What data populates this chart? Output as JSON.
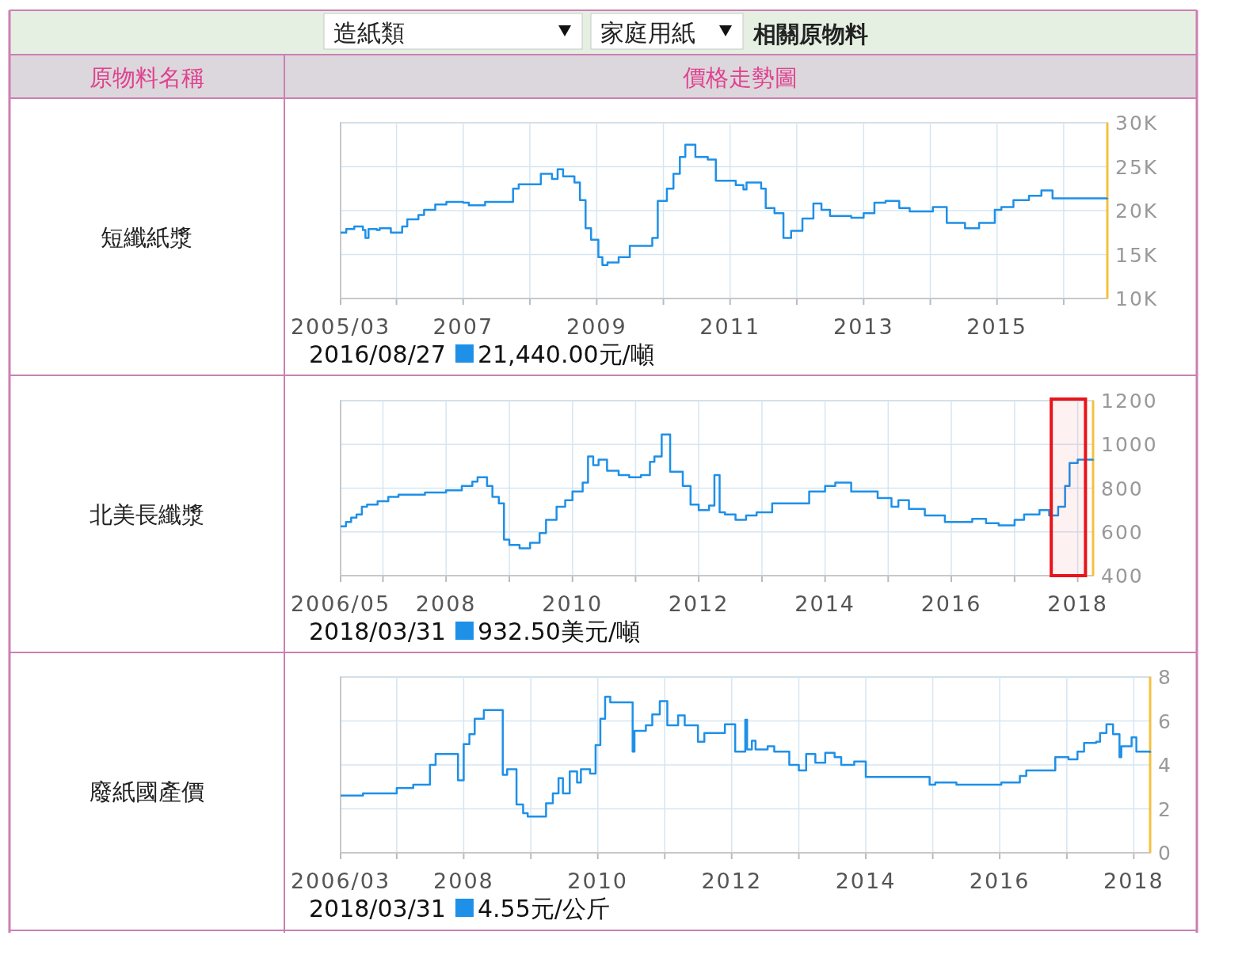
{
  "chart_data": [
    {
      "type": "other",
      "title": "相關原物料",
      "annotations": [
        "造紙類",
        "家庭用紙",
        "原物料名稱",
        "價格走勢圖"
      ]
    },
    {
      "type": "step",
      "title": "短纖紙漿",
      "color": "#1e90e8",
      "grid": true,
      "x": [
        "2005-03",
        "2005-04",
        "2005-05-15",
        "2005-07",
        "2005-07-15",
        "2005-08",
        "2005-09-15",
        "2005-10",
        "2005-12",
        "2006-02",
        "2006-03",
        "2006-05",
        "2006-06",
        "2006-08",
        "2006-10",
        "2007-01",
        "2007-02",
        "2007-05",
        "2007-10",
        "2007-11",
        "2008-03",
        "2008-05",
        "2008-06",
        "2008-07",
        "2008-09",
        "2008-10",
        "2008-11",
        "2008-12",
        "2009-01-10",
        "2009-02",
        "2009-03",
        "2009-05",
        "2009-07",
        "2009-11",
        "2009-12",
        "2010-01-20",
        "2010-02-25",
        "2010-04",
        "2010-05",
        "2010-06-25",
        "2010-09",
        "2010-10-15",
        "2011-02",
        "2011-03-15",
        "2011-04",
        "2011-06-20",
        "2011-07-15",
        "2011-09",
        "2011-10-20",
        "2011-12",
        "2012-02",
        "2012-04",
        "2012-05-15",
        "2012-07",
        "2012-10-25",
        "2013-01",
        "2013-03",
        "2013-05",
        "2013-07-15",
        "2013-09-10",
        "2014-01-15",
        "2014-04",
        "2014-07-10",
        "2014-09-25",
        "2014-12-20",
        "2015-01-25",
        "2015-04",
        "2015-06-25",
        "2015-09",
        "2015-11",
        "2016-08-27"
      ],
      "values": [
        17500,
        17900,
        18200,
        17800,
        16900,
        17900,
        17800,
        18000,
        17500,
        18200,
        19000,
        19500,
        20100,
        20700,
        21000,
        20900,
        20600,
        21000,
        22500,
        23000,
        24200,
        23600,
        24700,
        23900,
        23200,
        21200,
        18000,
        16700,
        14700,
        13800,
        14100,
        14700,
        16000,
        16900,
        21100,
        22500,
        24200,
        26100,
        27500,
        26100,
        25800,
        23400,
        22900,
        22400,
        23200,
        22500,
        20300,
        19700,
        16900,
        17700,
        19100,
        20800,
        20100,
        19400,
        19200,
        19700,
        20900,
        21100,
        20300,
        19900,
        20400,
        18600,
        18000,
        18600,
        20100,
        20400,
        21200,
        21700,
        22300,
        21400,
        21440
      ],
      "xlim": [
        "2005-03",
        "2016-08-27"
      ],
      "xticks": [
        {
          "value": "2005-03",
          "label": "2005/03"
        },
        {
          "value": "2006",
          "label": null
        },
        {
          "value": "2007",
          "label": "2007"
        },
        {
          "value": "2008",
          "label": null
        },
        {
          "value": "2009",
          "label": "2009"
        },
        {
          "value": "2010",
          "label": null
        },
        {
          "value": "2011",
          "label": "2011"
        },
        {
          "value": "2012",
          "label": null
        },
        {
          "value": "2013",
          "label": "2013"
        },
        {
          "value": "2014",
          "label": null
        },
        {
          "value": "2015",
          "label": "2015"
        },
        {
          "value": "2016",
          "label": null
        }
      ],
      "ylim": [
        10000,
        30000
      ],
      "yticks": [
        {
          "value": 10000,
          "label": "10K"
        },
        {
          "value": 15000,
          "label": "15K"
        },
        {
          "value": 20000,
          "label": "20K"
        },
        {
          "value": 25000,
          "label": "25K"
        },
        {
          "value": 30000,
          "label": "30K"
        }
      ],
      "annotations": [
        "2016/08/27",
        "21,440.00元/噸"
      ]
    },
    {
      "type": "step",
      "title": "北美長纖漿",
      "color": "#1e90e8",
      "grid": true,
      "x": [
        "2006-05",
        "2006-06",
        "2006-07",
        "2006-08",
        "2006-09",
        "2006-10",
        "2006-12",
        "2007-02",
        "2007-04",
        "2007-09",
        "2008-01",
        "2008-04",
        "2008-06",
        "2008-07",
        "2008-08-25",
        "2008-09-25",
        "2008-11",
        "2008-12",
        "2009-01",
        "2009-03",
        "2009-05",
        "2009-06-25",
        "2009-08",
        "2009-10",
        "2009-11-20",
        "2010-01",
        "2010-03",
        "2010-04",
        "2010-05",
        "2010-06",
        "2010-07-20",
        "2010-09-25",
        "2010-11-25",
        "2011-02",
        "2011-03-25",
        "2011-04-20",
        "2011-06",
        "2011-07-20",
        "2011-10",
        "2011-11-15",
        "2012-01",
        "2012-03",
        "2012-04",
        "2012-05",
        "2012-06",
        "2012-08",
        "2012-10",
        "2012-12",
        "2013-03",
        "2013-10",
        "2014-01",
        "2014-03",
        "2014-06",
        "2014-11",
        "2015-01-20",
        "2015-03",
        "2015-05",
        "2015-08",
        "2015-11-25",
        "2016-05",
        "2016-07-20",
        "2016-10",
        "2017-01",
        "2017-02-25",
        "2017-05-25",
        "2017-07-20",
        "2017-09-10",
        "2017-10-20",
        "2017-11-15",
        "2018-01",
        "2018-03-31"
      ],
      "values": [
        625,
        645,
        665,
        680,
        715,
        725,
        740,
        760,
        770,
        780,
        790,
        810,
        830,
        850,
        810,
        760,
        730,
        565,
        540,
        525,
        550,
        595,
        655,
        715,
        745,
        785,
        825,
        945,
        905,
        930,
        880,
        860,
        850,
        860,
        920,
        945,
        1045,
        875,
        810,
        725,
        700,
        720,
        860,
        690,
        680,
        655,
        675,
        690,
        730,
        785,
        810,
        825,
        785,
        755,
        715,
        745,
        705,
        675,
        645,
        660,
        640,
        630,
        655,
        680,
        700,
        675,
        715,
        810,
        915,
        930,
        932.5
      ],
      "xlim": [
        "2006-05",
        "2018-03-31"
      ],
      "xticks": [
        {
          "value": "2006-05",
          "label": "2006/05"
        },
        {
          "value": "2007",
          "label": null
        },
        {
          "value": "2008",
          "label": "2008"
        },
        {
          "value": "2009",
          "label": null
        },
        {
          "value": "2010",
          "label": "2010"
        },
        {
          "value": "2011",
          "label": null
        },
        {
          "value": "2012",
          "label": "2012"
        },
        {
          "value": "2013",
          "label": null
        },
        {
          "value": "2014",
          "label": "2014"
        },
        {
          "value": "2015",
          "label": null
        },
        {
          "value": "2016",
          "label": "2016"
        },
        {
          "value": "2017",
          "label": null
        },
        {
          "value": "2018",
          "label": "2018"
        }
      ],
      "ylim": [
        400,
        1200
      ],
      "yticks": [
        400,
        600,
        800,
        1000,
        1200
      ],
      "bands": [
        {
          "axis": "x",
          "from": "2017-08",
          "to": "2018-02-15",
          "color": "#e8141b"
        }
      ],
      "annotations": [
        "2018/03/31",
        "932.50美元/噸"
      ]
    },
    {
      "type": "step",
      "title": "廢紙國產價",
      "color": "#1e90e8",
      "grid": true,
      "x": [
        "2006-03",
        "2006-07",
        "2007-01",
        "2007-04",
        "2007-07",
        "2007-08",
        "2007-12",
        "2008-01",
        "2008-02",
        "2008-03",
        "2008-04-20",
        "2008-08",
        "2008-08-25",
        "2008-10-15",
        "2008-11-20",
        "2008-12-15",
        "2009-03-25",
        "2009-05",
        "2009-06",
        "2009-06-25",
        "2009-08",
        "2009-09-10",
        "2009-10",
        "2009-11-20",
        "2009-12-20",
        "2010-01-15",
        "2010-02-10",
        "2010-03-10",
        "2010-07-10",
        "2010-07-20",
        "2010-09-20",
        "2010-10-25",
        "2010-12-05",
        "2011-01-15",
        "2011-03-15",
        "2011-04-20",
        "2011-07",
        "2011-08-05",
        "2011-11-25",
        "2012-01-20",
        "2012-03-15",
        "2012-03-25",
        "2012-04-20",
        "2012-05-10",
        "2012-07-15",
        "2012-08-20",
        "2012-11-10",
        "2013-01",
        "2013-02-10",
        "2013-04",
        "2013-05-25",
        "2013-07-15",
        "2013-08-20",
        "2013-10-30",
        "2014-01",
        "2014-12-15",
        "2015-01-15",
        "2015-05-10",
        "2016-01-10",
        "2016-04-20",
        "2016-05-25",
        "2016-10-30",
        "2017-01-10",
        "2017-02-28",
        "2017-04-05",
        "2017-06-10",
        "2017-07",
        "2017-08-05",
        "2017-09-10",
        "2017-10-15",
        "2017-10-25",
        "2017-12-20",
        "2018-01-15",
        "2018-03-31"
      ],
      "values": [
        2.6,
        2.7,
        2.95,
        3.1,
        4.0,
        4.5,
        3.3,
        4.95,
        5.4,
        6.1,
        6.5,
        3.55,
        3.8,
        2.2,
        1.8,
        1.65,
        2.25,
        2.7,
        3.4,
        2.7,
        3.7,
        3.2,
        3.8,
        3.6,
        4.9,
        6.1,
        7.1,
        6.85,
        4.6,
        5.55,
        5.8,
        6.3,
        6.9,
        5.8,
        6.25,
        5.8,
        5.05,
        5.45,
        5.85,
        4.6,
        6.05,
        4.7,
        5.1,
        4.7,
        4.85,
        4.6,
        4.0,
        3.75,
        4.5,
        4.1,
        4.55,
        4.35,
        4.0,
        4.15,
        3.45,
        3.1,
        3.2,
        3.1,
        3.2,
        3.5,
        3.75,
        4.35,
        4.25,
        4.6,
        5.0,
        5.05,
        5.45,
        5.85,
        5.4,
        4.35,
        4.85,
        5.25,
        4.6,
        4.55
      ],
      "xlim": [
        "2006-03",
        "2018-03-31"
      ],
      "xticks": [
        {
          "value": "2006-03",
          "label": "2006/03"
        },
        {
          "value": "2007",
          "label": null
        },
        {
          "value": "2008",
          "label": "2008"
        },
        {
          "value": "2009",
          "label": null
        },
        {
          "value": "2010",
          "label": "2010"
        },
        {
          "value": "2011",
          "label": null
        },
        {
          "value": "2012",
          "label": "2012"
        },
        {
          "value": "2013",
          "label": null
        },
        {
          "value": "2014",
          "label": "2014"
        },
        {
          "value": "2015",
          "label": null
        },
        {
          "value": "2016",
          "label": "2016"
        },
        {
          "value": "2017",
          "label": null
        },
        {
          "value": "2018",
          "label": "2018"
        }
      ],
      "ylim": [
        0,
        8
      ],
      "yticks": [
        0,
        2,
        4,
        6,
        8
      ],
      "annotations": [
        "2018/03/31",
        "4.55元/公斤"
      ]
    }
  ]
}
